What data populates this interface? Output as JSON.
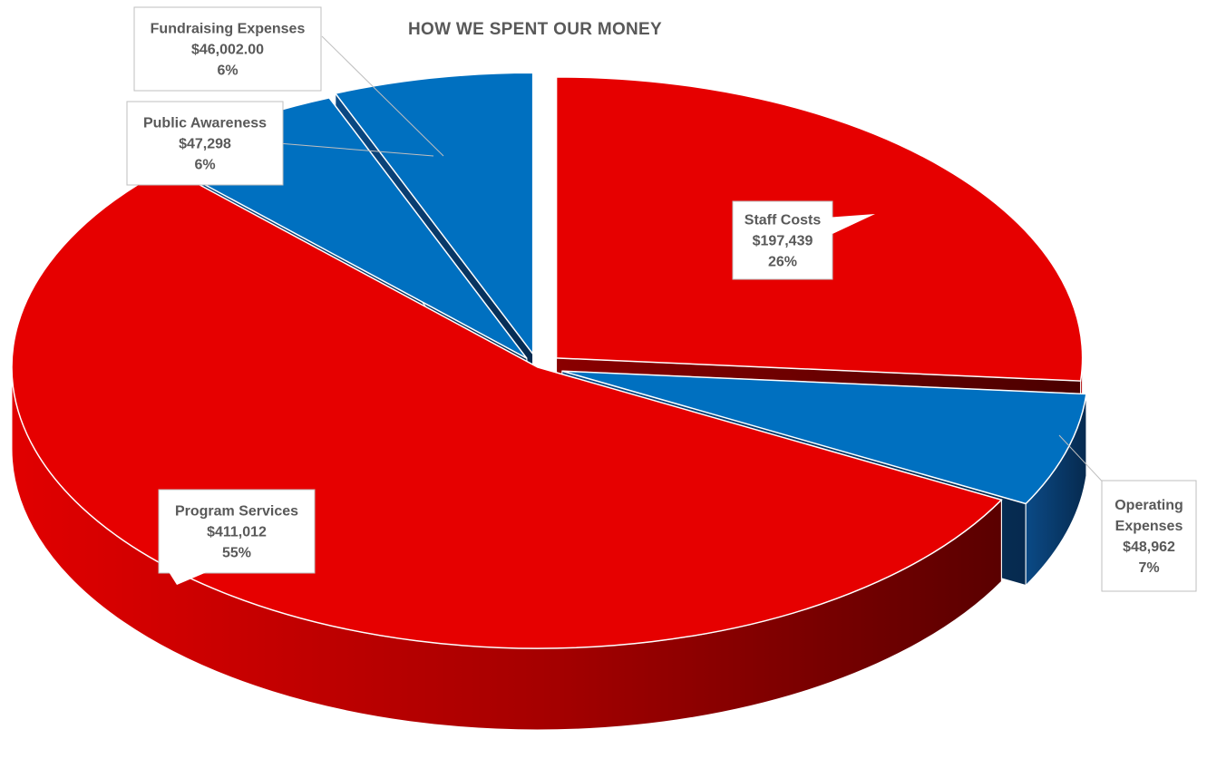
{
  "chart_data": {
    "type": "pie",
    "style": "3d-exploded",
    "title": "HOW WE SPENT OUR MONEY",
    "total": 750713,
    "slices": [
      {
        "label": "Staff Costs",
        "value_text": "$197,439",
        "percent_text": "26%",
        "value": 197439,
        "color": "#e60000",
        "exploded": true
      },
      {
        "label": "Operating Expenses",
        "label_lines": [
          "Operating",
          "Expenses"
        ],
        "value_text": "$48,962",
        "percent_text": "7%",
        "value": 48962,
        "color": "#0070c0",
        "exploded": true
      },
      {
        "label": "Program Services",
        "value_text": "$411,012",
        "percent_text": "55%",
        "value": 411012,
        "color": "#e60000",
        "exploded": false
      },
      {
        "label": "Public Awareness",
        "value_text": "$47,298",
        "percent_text": "6%",
        "value": 47298,
        "color": "#0070c0",
        "exploded": true
      },
      {
        "label": "Fundraising Expenses",
        "value_text": "$46,002.00",
        "percent_text": "6%",
        "value": 46002,
        "color": "#0070c0",
        "exploded": true
      }
    ],
    "legend": "none",
    "data_labels": "callouts"
  }
}
